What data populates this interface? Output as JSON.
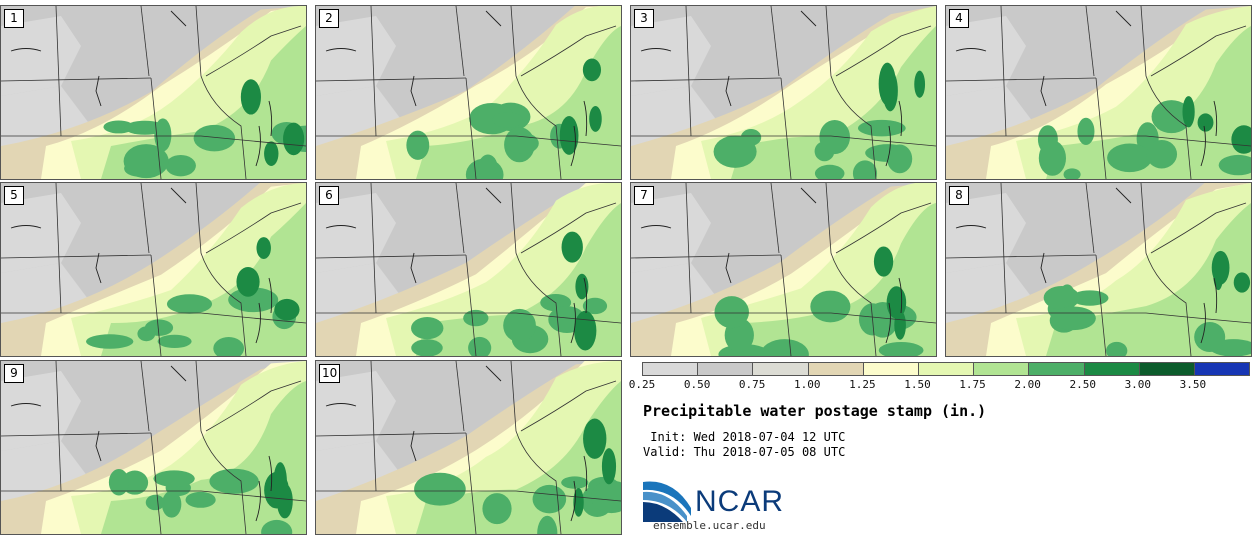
{
  "panels": [
    {
      "label": "1"
    },
    {
      "label": "2"
    },
    {
      "label": "3"
    },
    {
      "label": "4"
    },
    {
      "label": "5"
    },
    {
      "label": "6"
    },
    {
      "label": "7"
    },
    {
      "label": "8"
    },
    {
      "label": "9"
    },
    {
      "label": "10"
    }
  ],
  "legend": {
    "colors": [
      "#d9d9d9",
      "#c9c9c9",
      "#dcdcd4",
      "#e2d6b4",
      "#fcfccc",
      "#e4f7b2",
      "#b1e493",
      "#4daf68",
      "#1c8a44",
      "#0c5c2c",
      "#1736b4"
    ],
    "ticks": [
      "0.25",
      "0.50",
      "0.75",
      "1.00",
      "1.25",
      "1.50",
      "1.75",
      "2.00",
      "2.50",
      "3.00",
      "3.50"
    ]
  },
  "title": "Precipitable water postage stamp (in.)",
  "init_text": " Init: Wed 2018-07-04 12 UTC",
  "valid_text": "Valid: Thu 2018-07-05 08 UTC",
  "logo_text": "NCAR",
  "site": "ensemble.ucar.edu"
}
